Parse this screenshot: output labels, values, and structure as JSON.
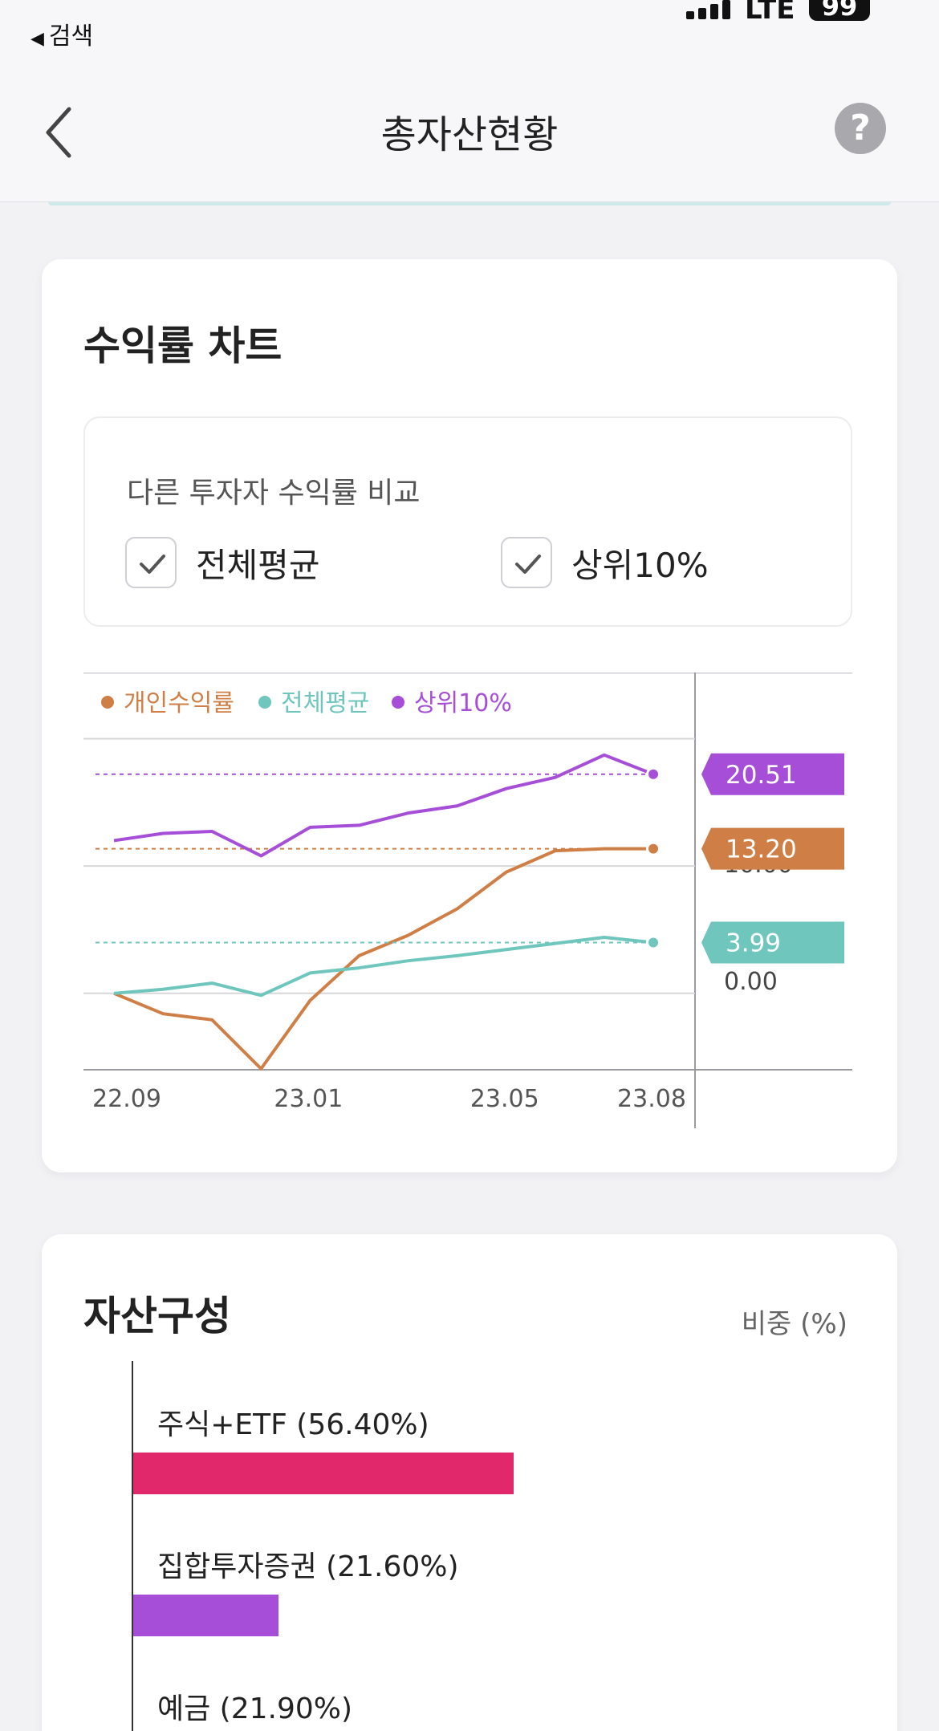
{
  "status": {
    "back_app": "검색",
    "network": "LTE",
    "battery": "99"
  },
  "nav": {
    "title": "총자산현황"
  },
  "yield_card": {
    "title": "수익률 차트",
    "compare_label": "다른 투자자 수익률 비교",
    "options": [
      {
        "label": "전체평균",
        "checked": true
      },
      {
        "label": "상위10%",
        "checked": true
      }
    ]
  },
  "chart_data": {
    "type": "line",
    "x": [
      "22.09",
      "22.10",
      "22.11",
      "22.12",
      "23.01",
      "23.02",
      "23.03",
      "23.04",
      "23.05",
      "23.06",
      "23.07",
      "23.08"
    ],
    "xtick_labels": [
      "22.09",
      "23.01",
      "23.05",
      "23.08"
    ],
    "ytick_labels": [
      "10.00",
      "0.00"
    ],
    "ylim": [
      -8.5,
      30.5
    ],
    "grid": true,
    "legend_position": "top-left",
    "series": [
      {
        "name": "개인수익률",
        "color": "#cf7f45",
        "values": [
          -1.0,
          -3.0,
          -3.6,
          -8.4,
          -1.7,
          2.7,
          4.7,
          7.3,
          10.9,
          13.0,
          13.2,
          13.2
        ],
        "last_label": "13.20"
      },
      {
        "name": "전체평균",
        "color": "#6ec6bd",
        "values": [
          -1.0,
          -0.6,
          0.0,
          -1.2,
          1.0,
          1.5,
          2.2,
          2.7,
          3.3,
          3.9,
          4.5,
          3.99
        ],
        "last_label": "3.99"
      },
      {
        "name": "상위10%",
        "color": "#a64ed8",
        "values": [
          14.0,
          14.7,
          14.9,
          12.5,
          15.3,
          15.5,
          16.7,
          17.4,
          19.1,
          20.2,
          22.4,
          20.51
        ],
        "last_label": "20.51"
      }
    ]
  },
  "asset_card": {
    "title": "자산구성",
    "weight_label": "비중 (%)",
    "items": [
      {
        "label": "주식+ETF (56.40%)",
        "value": 56.4,
        "color": "#e0286a"
      },
      {
        "label": "집합투자증권 (21.60%)",
        "value": 21.6,
        "color": "#a64ed8"
      },
      {
        "label": "예금 (21.90%)",
        "value": 21.9,
        "color": "#6ec6bd"
      }
    ]
  },
  "icons": {
    "back": "chevron-left-icon",
    "help": "question-icon",
    "check": "checkmark-icon"
  }
}
